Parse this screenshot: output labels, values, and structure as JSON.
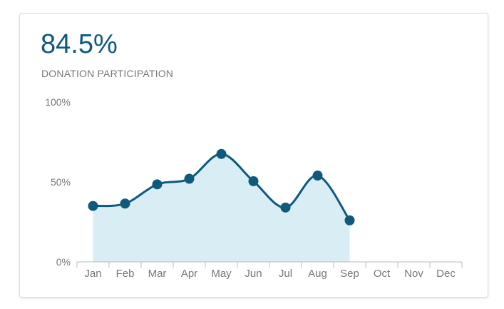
{
  "kpi": {
    "value": "84.5%",
    "label": "DONATION PARTICIPATION"
  },
  "colors": {
    "accent": "#0e5a7e",
    "line": "#0e5a7e",
    "area": "#d9edf4",
    "axis": "#b4bcc4",
    "text": "#777777"
  },
  "chart_data": {
    "type": "area",
    "title": "",
    "xlabel": "",
    "ylabel": "",
    "categories": [
      "Jan",
      "Feb",
      "Mar",
      "Apr",
      "May",
      "Jun",
      "Jul",
      "Aug",
      "Sep",
      "Oct",
      "Nov",
      "Dec"
    ],
    "series": [
      {
        "values": [
          35,
          36.5,
          48.5,
          52,
          67.5,
          50.5,
          34,
          54,
          26,
          null,
          null,
          null
        ]
      }
    ],
    "ylim": [
      0,
      100
    ],
    "yticks": [
      0,
      50,
      100
    ],
    "ytick_labels": [
      "0%",
      "50%",
      "100%"
    ],
    "grid": false,
    "legend": "none"
  }
}
